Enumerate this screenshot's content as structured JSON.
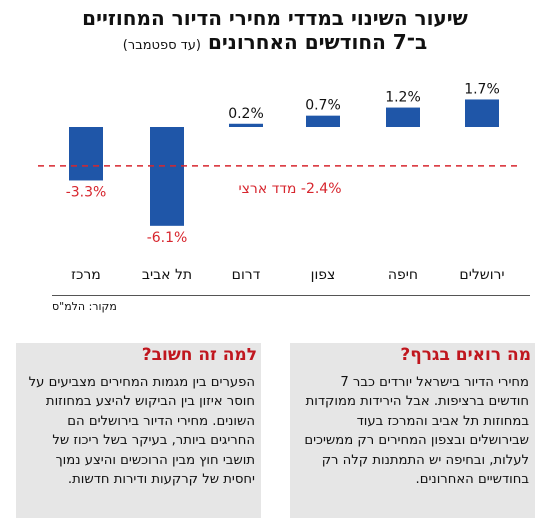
{
  "header": {
    "title_line1": "שיעור השינוי במדדי מחירי הדיור המחוזיים",
    "title_line2": "ב־7 החודשים האחרונים",
    "title_note": "(עד ספטמבר)"
  },
  "chart_data": {
    "type": "bar",
    "categories": [
      "ירושלים",
      "חיפה",
      "צפון",
      "דרום",
      "תל אביב",
      "מרכז"
    ],
    "values": [
      1.7,
      1.2,
      0.7,
      0.2,
      -6.1,
      -3.3
    ],
    "value_labels": [
      "1.7%",
      "1.2%",
      "0.7%",
      "0.2%",
      "-6.1%",
      "-3.3%"
    ],
    "reference_line": {
      "value": -2.4,
      "label": "2.4%- מדד ארצי"
    },
    "ylim": [
      -6.1,
      1.7
    ],
    "colors": {
      "bar": "#1f56a8",
      "reference": "#d7262e",
      "negative_label": "#d7262e"
    }
  },
  "source": "מקור: הלמ\"ס",
  "cards": {
    "what": {
      "heading": "מה רואים בגרף?",
      "body": "מחירי הדיור בישראל יורדים כבר 7 חודשים ברציפות. אבל הירידות ממוקדות במחוזות תל אביב והמרכז בעוד שבירושלים ובצפון המחירים רק ממשיכים לעלות, ובחיפה יש התמתנות קלה רק בחודשיים האחרונים."
    },
    "why": {
      "heading": "למה זה חשוב?",
      "body": "הפערים בין מגמות המחירים מצביעים על חוסר איזון בין הביקוש להיצע במחוזות השונים. מחירי הדיור בירושלים הם החריגים ביותר, בעיקר בשל ריכוז של תושבי חוץ מבין הרוכשים והיצע נמוך יחסית של קרקעות ודירות חדשות."
    }
  }
}
